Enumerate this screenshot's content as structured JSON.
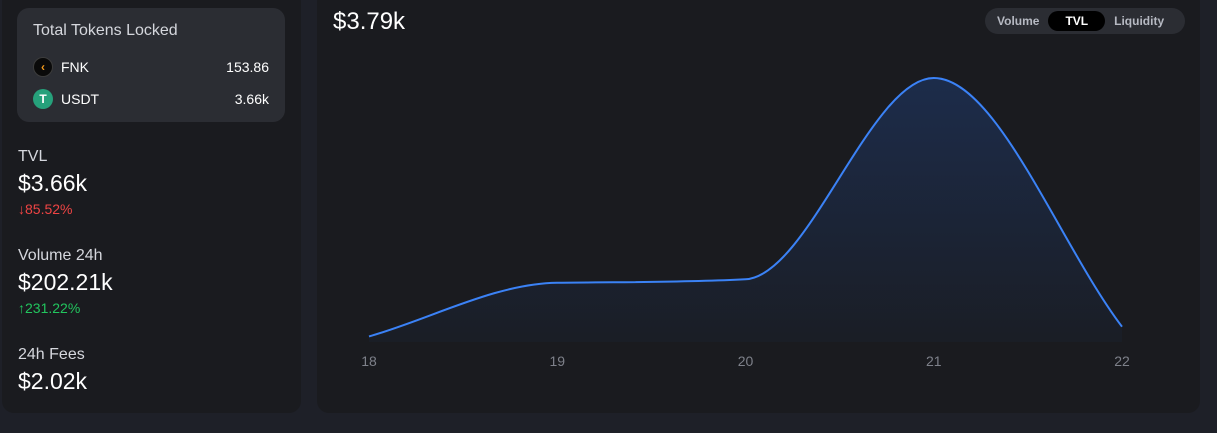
{
  "tokens": {
    "title": "Total Tokens Locked",
    "items": [
      {
        "symbol": "FNK",
        "amount": "153.86",
        "icon": "fnk-logo-icon"
      },
      {
        "symbol": "USDT",
        "amount": "3.66k",
        "icon": "usdt-logo-icon"
      }
    ]
  },
  "stats": {
    "tvl": {
      "label": "TVL",
      "value": "$3.66k",
      "change": "85.52%",
      "direction": "down"
    },
    "volume": {
      "label": "Volume 24h",
      "value": "$202.21k",
      "change": "231.22%",
      "direction": "up"
    },
    "fees": {
      "label": "24h Fees",
      "value": "$2.02k"
    }
  },
  "chart": {
    "value": "$3.79k",
    "toggle": {
      "options": [
        "Volume",
        "TVL",
        "Liquidity"
      ],
      "active": "TVL"
    }
  },
  "chart_data": {
    "type": "area",
    "x": [
      18,
      19,
      20,
      21,
      22
    ],
    "xticks": [
      "18",
      "19",
      "20",
      "21",
      "22"
    ],
    "values": [
      0.08,
      0.85,
      0.9,
      3.79,
      0.22
    ],
    "line_color": "#3b82f6",
    "grid": false
  }
}
